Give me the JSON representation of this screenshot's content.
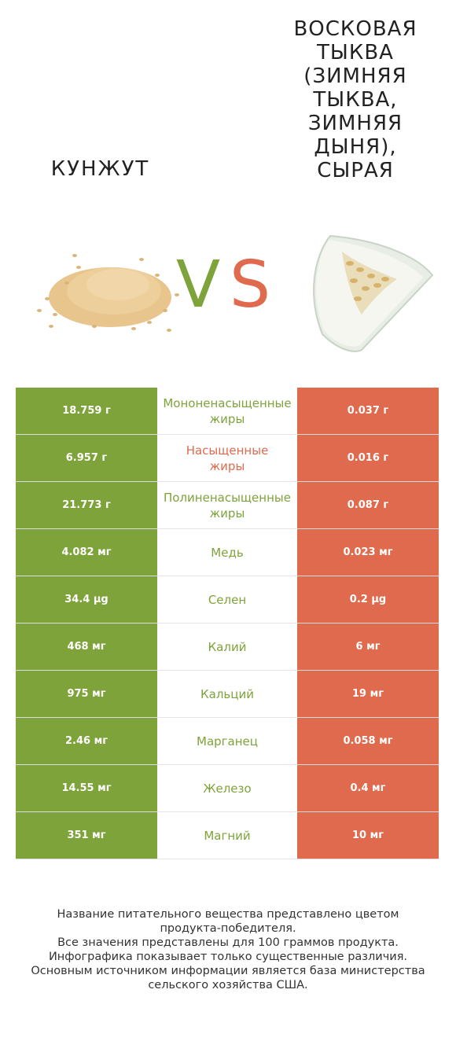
{
  "titles": {
    "left": "Кунжут",
    "right_lines": [
      "Восковая",
      "тыква",
      "(зимняя",
      "тыква,",
      "зимняя",
      "дыня),",
      "сырая"
    ]
  },
  "vs": {
    "v": "V",
    "s": "S"
  },
  "colors": {
    "left": "#7ea33a",
    "right": "#e06a4d"
  },
  "icons": {
    "left": "sesame-seeds-image",
    "right": "wax-gourd-slice-image"
  },
  "rows": [
    {
      "left": "18.759 г",
      "label_lines": [
        "Мононенасыщенные",
        "жиры"
      ],
      "right": "0.037 г",
      "winner": "left"
    },
    {
      "left": "6.957 г",
      "label_lines": [
        "Насыщенные",
        "жиры"
      ],
      "right": "0.016 г",
      "winner": "right"
    },
    {
      "left": "21.773 г",
      "label_lines": [
        "Полиненасыщенные",
        "жиры"
      ],
      "right": "0.087 г",
      "winner": "left"
    },
    {
      "left": "4.082 мг",
      "label_lines": [
        "Медь"
      ],
      "right": "0.023 мг",
      "winner": "left"
    },
    {
      "left": "34.4 µg",
      "label_lines": [
        "Селен"
      ],
      "right": "0.2 µg",
      "winner": "left"
    },
    {
      "left": "468 мг",
      "label_lines": [
        "Калий"
      ],
      "right": "6 мг",
      "winner": "left"
    },
    {
      "left": "975 мг",
      "label_lines": [
        "Кальций"
      ],
      "right": "19 мг",
      "winner": "left"
    },
    {
      "left": "2.46 мг",
      "label_lines": [
        "Марганец"
      ],
      "right": "0.058 мг",
      "winner": "left"
    },
    {
      "left": "14.55 мг",
      "label_lines": [
        "Железо"
      ],
      "right": "0.4 мг",
      "winner": "left"
    },
    {
      "left": "351 мг",
      "label_lines": [
        "Магний"
      ],
      "right": "10 мг",
      "winner": "left"
    }
  ],
  "footer_lines": [
    "Название питательного вещества представлено цветом",
    "продукта-победителя.",
    "Все значения представлены для 100 граммов продукта.",
    "Инфографика показывает только существенные различия.",
    "Основным источником информации является база министерства",
    "сельского хозяйства США."
  ]
}
